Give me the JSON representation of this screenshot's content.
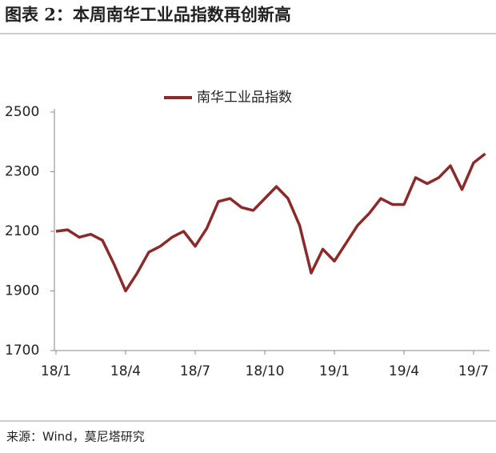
{
  "chart_data": {
    "type": "line",
    "title": "图表 2：本周南华工业品指数再创新高",
    "source": "来源：Wind，莫尼塔研究",
    "categories": [
      "18/1",
      null,
      null,
      null,
      null,
      null,
      "18/4",
      null,
      null,
      null,
      null,
      null,
      "18/7",
      null,
      null,
      null,
      null,
      null,
      "18/10",
      null,
      null,
      null,
      null,
      null,
      "19/1",
      null,
      null,
      null,
      null,
      null,
      "19/4",
      null,
      null,
      null,
      null,
      null,
      "19/7",
      null
    ],
    "series": [
      {
        "name": "南华工业品指数",
        "color": "#8b2a2a",
        "values": [
          2100,
          2105,
          2080,
          2090,
          2070,
          1990,
          1900,
          1960,
          2030,
          2050,
          2080,
          2100,
          2050,
          2110,
          2200,
          2210,
          2180,
          2170,
          2210,
          2250,
          2210,
          2120,
          1960,
          2040,
          2000,
          2060,
          2120,
          2160,
          2210,
          2190,
          2190,
          2280,
          2260,
          2280,
          2320,
          2240,
          2330,
          2360
        ]
      }
    ],
    "ylim": [
      1700,
      2500
    ],
    "yticks": [
      1700,
      1900,
      2100,
      2300,
      2500
    ],
    "grid": false,
    "legend": "top"
  }
}
